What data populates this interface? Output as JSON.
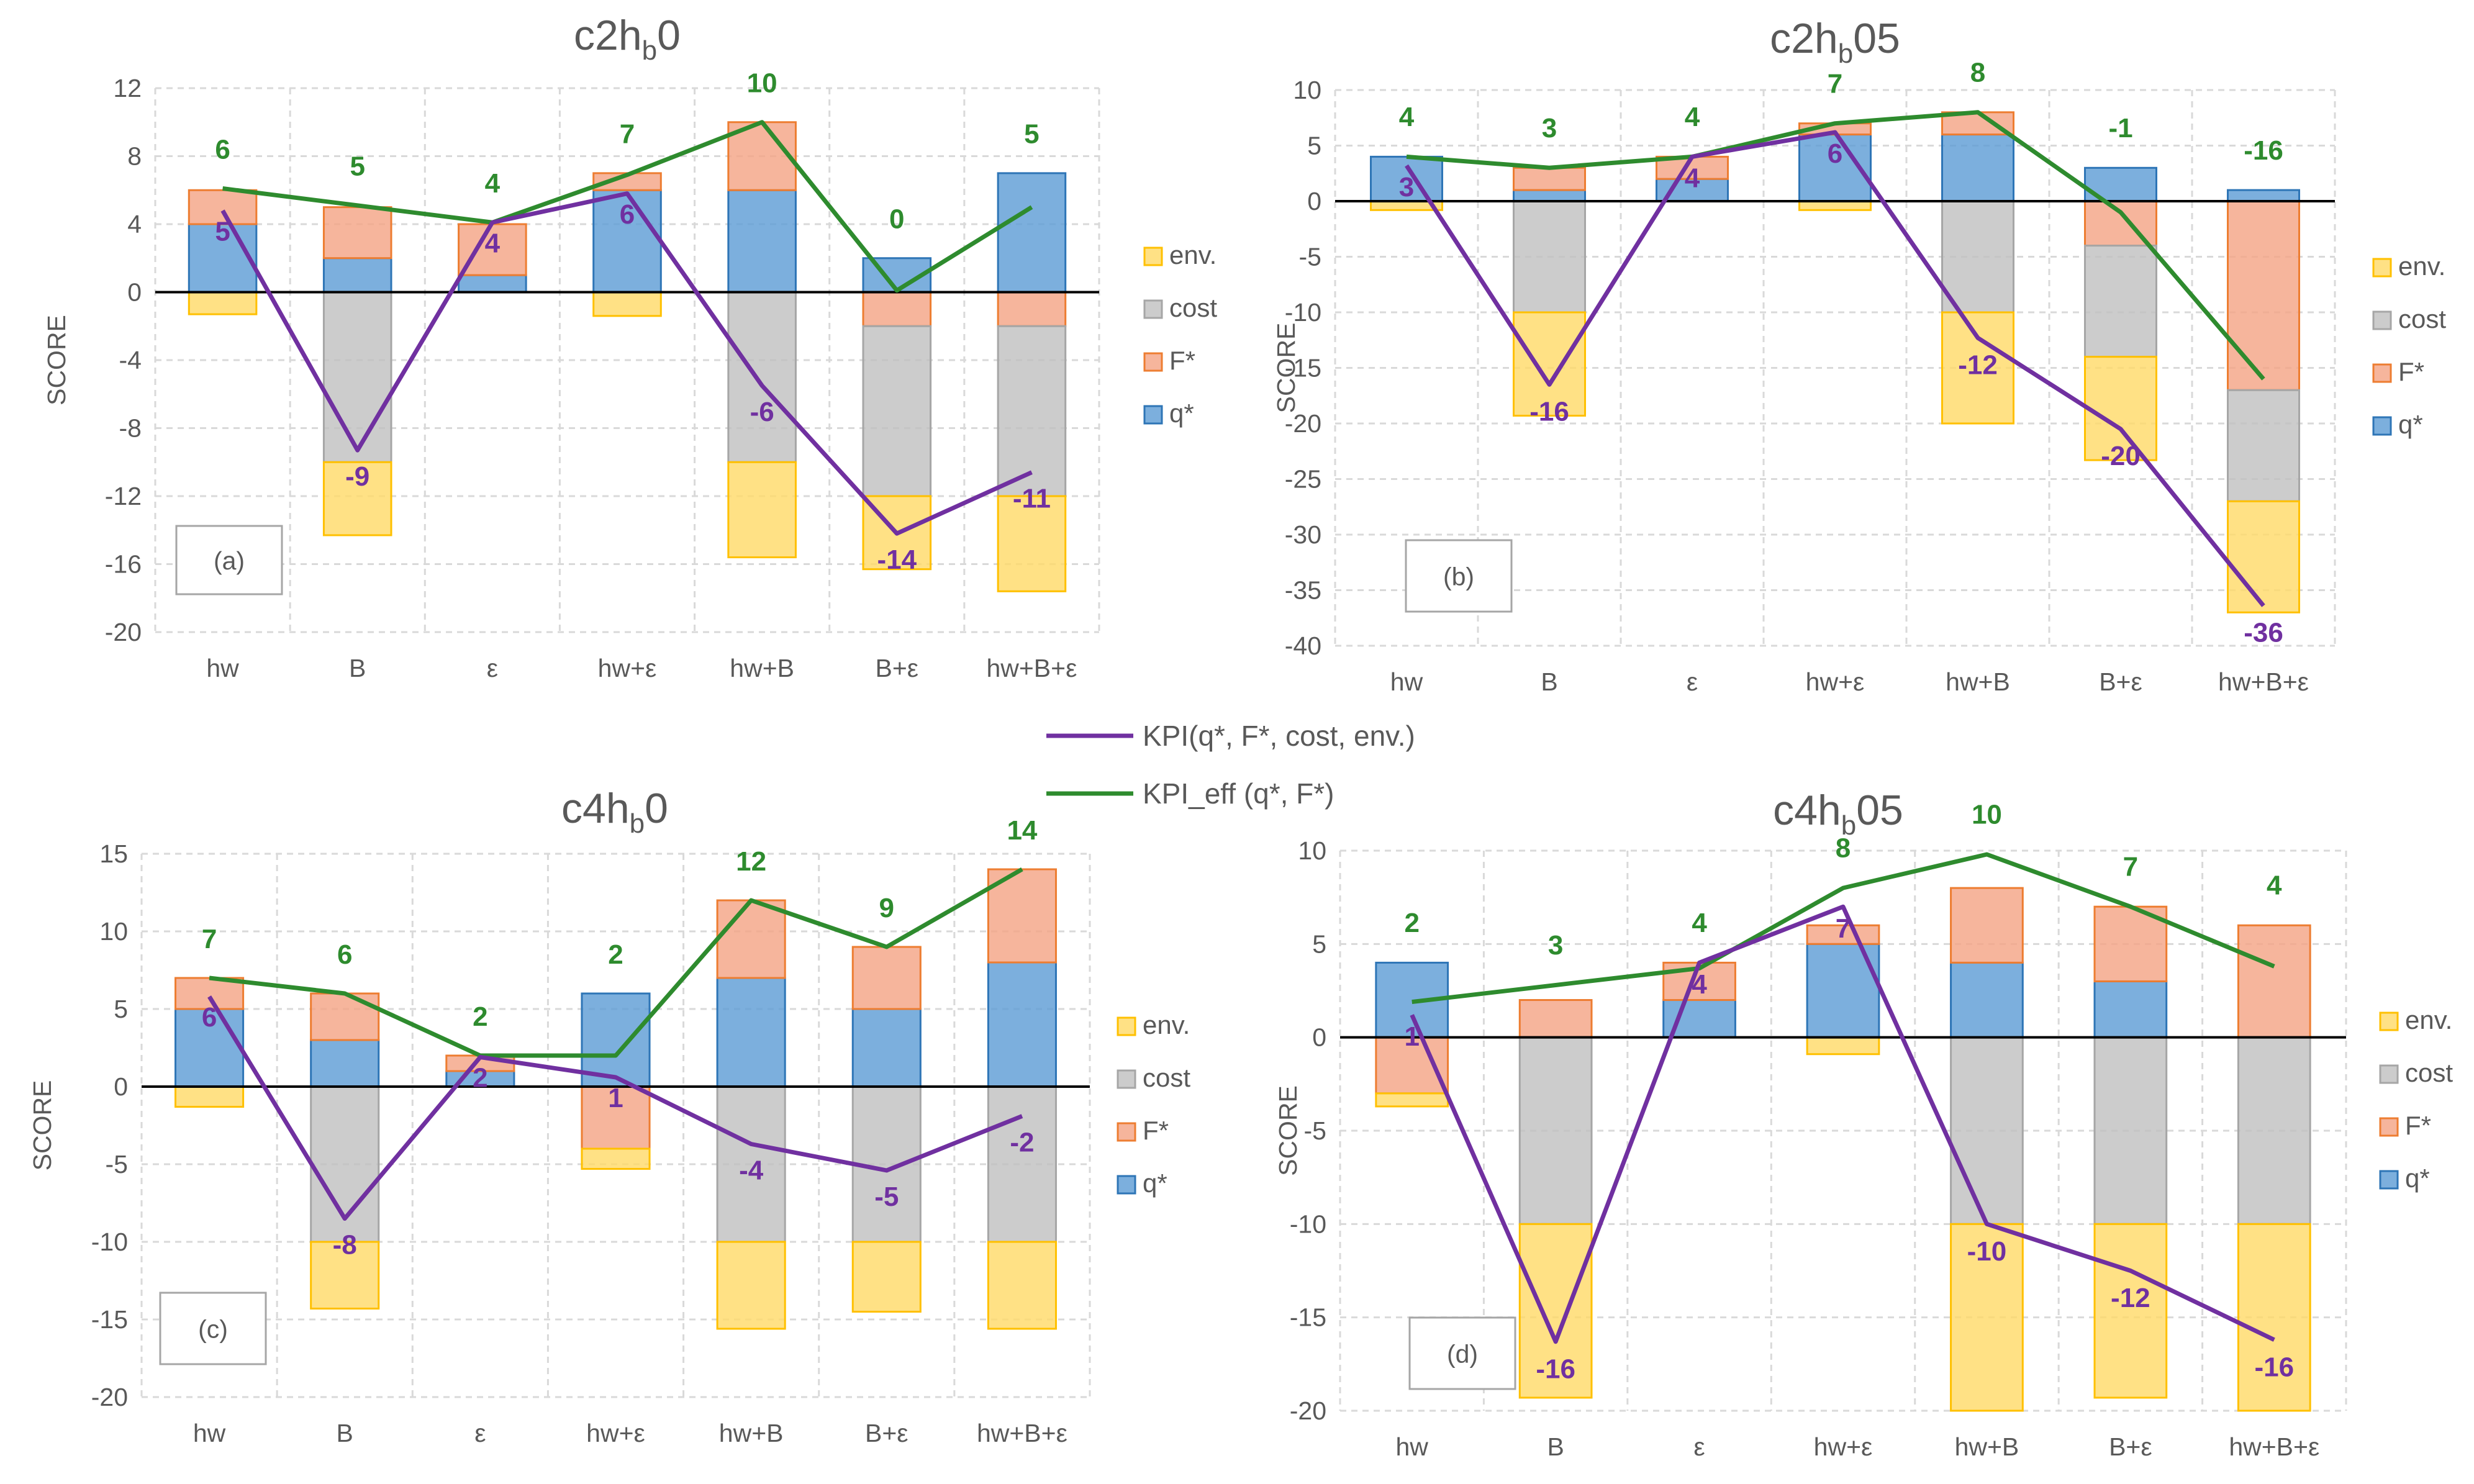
{
  "colors": {
    "q": "#5B9BD5",
    "F": "#F4A283",
    "cost": "#BFBFBF",
    "env": "#FFD966",
    "q_edge": "#2E75B6",
    "F_edge": "#ED7D31",
    "cost_edge": "#A6A6A6",
    "env_edge": "#FFC000",
    "kpi": "#7030A0",
    "kpi_eff": "#2E8B2E",
    "grid": "#D9D9D9",
    "axis_text": "#595959"
  },
  "shared_legend": {
    "kpi": "KPI(q*, F*, cost, env.)",
    "kpi_eff": "KPI_eff (q*, F*)"
  },
  "chart_data": [
    {
      "type": "bar",
      "stacked": true,
      "title_main": "c2h",
      "title_sub": "b",
      "title_end": "0",
      "ylabel": "SCORE",
      "panel_label": "(a)",
      "ylim": [
        -20,
        12
      ],
      "yticks": [
        -20,
        -16,
        -12,
        -8,
        -4,
        0,
        4,
        8,
        12
      ],
      "categories": [
        "hw",
        "B",
        "ε",
        "hw+ε",
        "hw+B",
        "B+ε",
        "hw+B+ε"
      ],
      "legend": [
        "env.",
        "cost",
        "F*",
        "q*"
      ],
      "series": [
        {
          "name": "q*",
          "key": "q",
          "values": [
            4,
            2,
            1,
            6,
            6,
            2,
            7
          ]
        },
        {
          "name": "F*",
          "key": "F",
          "values": [
            2,
            3,
            3,
            1,
            4,
            -2,
            -2
          ]
        },
        {
          "name": "cost",
          "key": "cost",
          "values": [
            0,
            -10,
            0,
            0,
            -10,
            -10,
            -10
          ]
        },
        {
          "name": "env.",
          "key": "env",
          "values": [
            -1.3,
            -4.3,
            0,
            -1.4,
            -5.6,
            -4.3,
            -5.6
          ]
        }
      ],
      "kpi_values": [
        4.8,
        -9.3,
        4.1,
        5.8,
        -5.5,
        -14.2,
        -10.6
      ],
      "kpi_labels": [
        "5",
        "-9",
        "4",
        "6",
        "-6",
        "-14",
        "-11"
      ],
      "kpi_eff_values": [
        6.1,
        5.1,
        4.1,
        6.9,
        10,
        0.1,
        5
      ],
      "kpi_eff_labels": [
        "6",
        "5",
        "4",
        "7",
        "10",
        "0",
        "5"
      ]
    },
    {
      "type": "bar",
      "stacked": true,
      "title_main": "c2h",
      "title_sub": "b",
      "title_end": "05",
      "ylabel": "SCORE",
      "panel_label": "(b)",
      "ylim": [
        -40,
        10
      ],
      "yticks": [
        -40,
        -35,
        -30,
        -25,
        -20,
        -15,
        -10,
        -5,
        0,
        5,
        10
      ],
      "categories": [
        "hw",
        "B",
        "ε",
        "hw+ε",
        "hw+B",
        "B+ε",
        "hw+B+ε"
      ],
      "legend": [
        "env.",
        "cost",
        "F*",
        "q*"
      ],
      "series": [
        {
          "name": "q*",
          "key": "q",
          "values": [
            4,
            1,
            2,
            6,
            6,
            3,
            1
          ]
        },
        {
          "name": "F*",
          "key": "F",
          "values": [
            0,
            2,
            2,
            1,
            2,
            -4,
            -17
          ]
        },
        {
          "name": "cost",
          "key": "cost",
          "values": [
            0,
            -10,
            0,
            0,
            -10,
            -10,
            -10
          ]
        },
        {
          "name": "env.",
          "key": "env",
          "values": [
            -0.8,
            -9.3,
            0,
            -0.8,
            -10,
            -9.3,
            -10
          ]
        }
      ],
      "kpi_values": [
        3.2,
        -16.5,
        4,
        6.2,
        -12.3,
        -20.5,
        -36.4
      ],
      "kpi_labels": [
        "3",
        "-16",
        "4",
        "6",
        "-12",
        "-20",
        "-36"
      ],
      "kpi_eff_values": [
        4,
        3,
        4,
        7,
        8,
        -1,
        -16
      ],
      "kpi_eff_labels": [
        "4",
        "3",
        "4",
        "7",
        "8",
        "-1",
        "-16"
      ]
    },
    {
      "type": "bar",
      "stacked": true,
      "title_main": "c4h",
      "title_sub": "b",
      "title_end": "0",
      "ylabel": "SCORE",
      "panel_label": "(c)",
      "ylim": [
        -20,
        15
      ],
      "yticks": [
        -20,
        -15,
        -10,
        -5,
        0,
        5,
        10,
        15
      ],
      "categories": [
        "hw",
        "B",
        "ε",
        "hw+ε",
        "hw+B",
        "B+ε",
        "hw+B+ε"
      ],
      "legend": [
        "env.",
        "cost",
        "F*",
        "q*"
      ],
      "series": [
        {
          "name": "q*",
          "key": "q",
          "values": [
            5,
            3,
            1,
            6,
            7,
            5,
            8
          ]
        },
        {
          "name": "F*",
          "key": "F",
          "values": [
            2,
            3,
            1,
            -4,
            5,
            4,
            6
          ]
        },
        {
          "name": "cost",
          "key": "cost",
          "values": [
            0,
            -10,
            0,
            0,
            -10,
            -10,
            -10
          ]
        },
        {
          "name": "env.",
          "key": "env",
          "values": [
            -1.3,
            -4.3,
            0,
            -1.3,
            -5.6,
            -4.5,
            -5.6
          ]
        }
      ],
      "kpi_values": [
        5.8,
        -8.5,
        1.9,
        0.6,
        -3.7,
        -5.4,
        -1.9
      ],
      "kpi_labels": [
        "6",
        "-8",
        "2",
        "1",
        "-4",
        "-5",
        "-2"
      ],
      "kpi_eff_values": [
        7,
        6,
        2,
        2,
        12,
        9,
        14
      ],
      "kpi_eff_labels": [
        "7",
        "6",
        "2",
        "2",
        "12",
        "9",
        "14"
      ]
    },
    {
      "type": "bar",
      "stacked": true,
      "title_main": "c4h",
      "title_sub": "b",
      "title_end": "05",
      "ylabel": "SCORE",
      "panel_label": "(d)",
      "ylim": [
        -20,
        10
      ],
      "yticks": [
        -20,
        -15,
        -10,
        -5,
        0,
        5,
        10
      ],
      "categories": [
        "hw",
        "B",
        "ε",
        "hw+ε",
        "hw+B",
        "B+ε",
        "hw+B+ε"
      ],
      "legend": [
        "env.",
        "cost",
        "F*",
        "q*"
      ],
      "series": [
        {
          "name": "q*",
          "key": "q",
          "values": [
            4,
            0,
            2,
            5,
            4,
            3,
            0
          ]
        },
        {
          "name": "F*",
          "key": "F",
          "values": [
            -3,
            2,
            2,
            1,
            4,
            4,
            6
          ]
        },
        {
          "name": "cost",
          "key": "cost",
          "values": [
            0,
            -10,
            0,
            0,
            -10,
            -10,
            -10
          ]
        },
        {
          "name": "env.",
          "key": "env",
          "values": [
            -0.7,
            -9.3,
            0,
            -0.9,
            -10,
            -9.3,
            -10
          ]
        }
      ],
      "kpi_values": [
        1.2,
        -16.3,
        4,
        7,
        -10,
        -12.5,
        -16.2
      ],
      "kpi_labels": [
        "1",
        "-16",
        "4",
        "7",
        "-10",
        "-12",
        "-16"
      ],
      "kpi_eff_values": [
        1.9,
        2.8,
        3.7,
        8,
        9.8,
        7,
        3.8
      ],
      "kpi_eff_labels": [
        "2",
        "3",
        "4",
        "8",
        "10",
        "7",
        "4"
      ]
    }
  ]
}
